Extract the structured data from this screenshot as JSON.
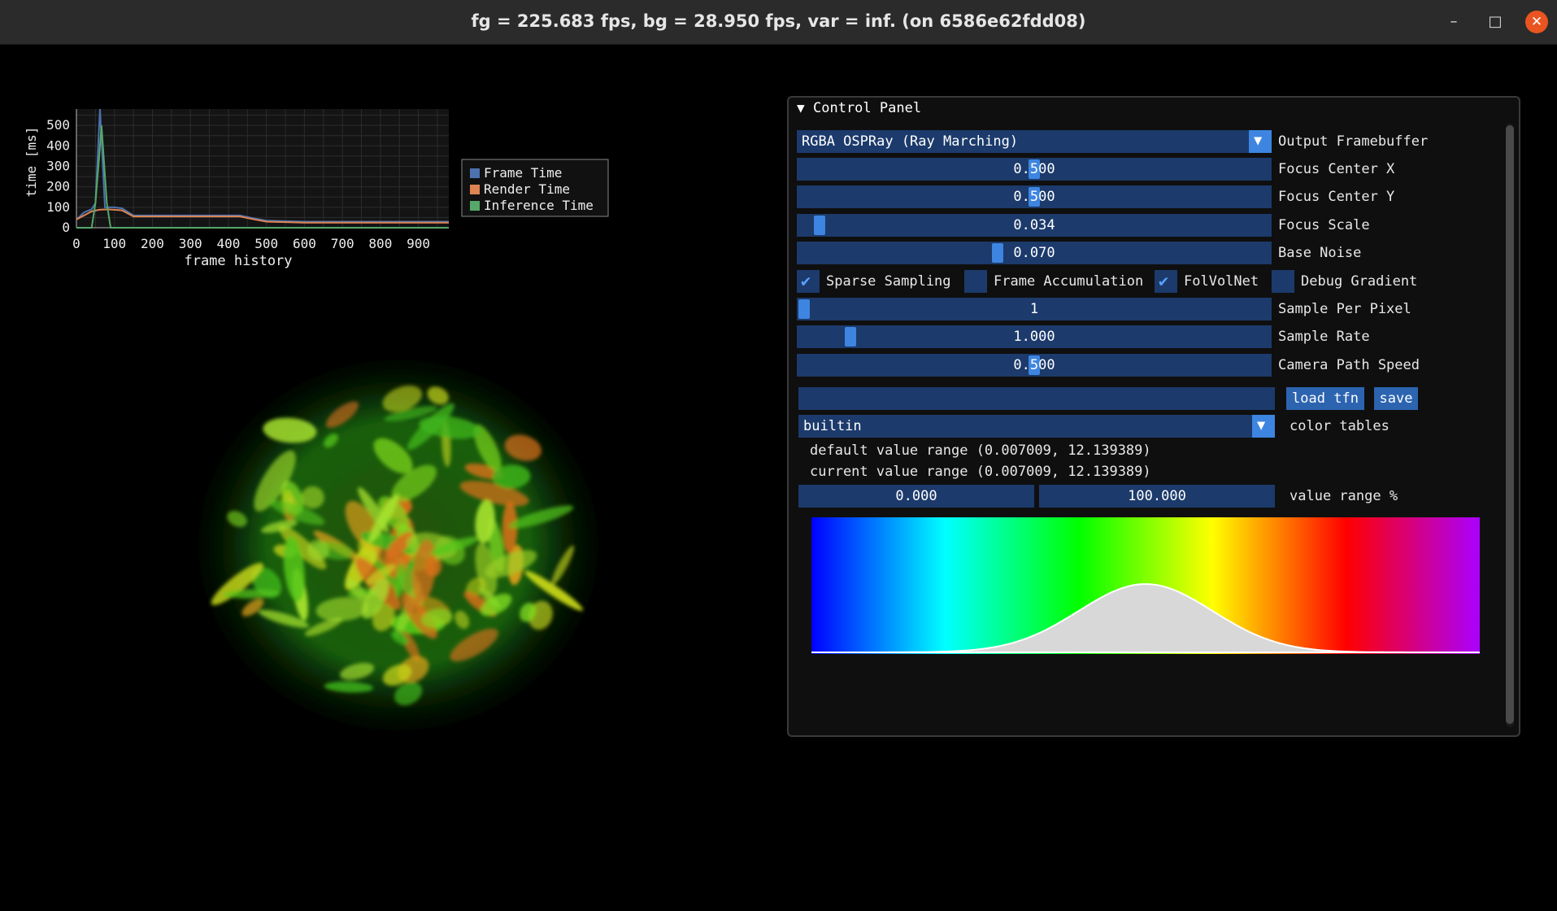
{
  "window": {
    "title": "fg = 225.683 fps, bg = 28.950 fps, var = inf. (on 6586e62fdd08)",
    "minimize_glyph": "–",
    "maximize_glyph": "□",
    "close_glyph": "✕",
    "close_color": "#e95420"
  },
  "chart_data": {
    "type": "line",
    "xlabel": "frame history",
    "ylabel": "time [ms]",
    "xlim": [
      0,
      980
    ],
    "ylim": [
      0,
      580
    ],
    "x_ticks": [
      0,
      100,
      200,
      300,
      400,
      500,
      600,
      700,
      800,
      900
    ],
    "y_ticks": [
      0,
      100,
      200,
      300,
      400,
      500
    ],
    "grid": true,
    "legend_position": "right",
    "series": [
      {
        "name": "Frame Time",
        "color": "#4c72b0",
        "x": [
          0,
          20,
          40,
          50,
          62,
          75,
          100,
          120,
          150,
          200,
          300,
          400,
          430,
          470,
          500,
          600,
          700,
          800,
          900,
          980
        ],
        "y": [
          40,
          75,
          90,
          120,
          580,
          100,
          100,
          95,
          60,
          60,
          60,
          60,
          60,
          45,
          35,
          30,
          30,
          30,
          30,
          30
        ]
      },
      {
        "name": "Render Time",
        "color": "#dd8452",
        "x": [
          0,
          20,
          40,
          60,
          80,
          100,
          120,
          150,
          200,
          300,
          400,
          430,
          470,
          500,
          600,
          700,
          800,
          900,
          980
        ],
        "y": [
          40,
          60,
          80,
          88,
          90,
          88,
          85,
          55,
          55,
          55,
          55,
          55,
          40,
          30,
          25,
          25,
          25,
          25,
          25
        ]
      },
      {
        "name": "Inference Time",
        "color": "#55a868",
        "x": [
          0,
          40,
          50,
          60,
          66,
          80,
          90,
          100,
          200,
          400,
          600,
          800,
          980
        ],
        "y": [
          0,
          0,
          120,
          350,
          500,
          120,
          0,
          0,
          0,
          0,
          0,
          0,
          0
        ]
      }
    ]
  },
  "panel": {
    "title": "Control Panel",
    "output_framebuffer": {
      "value": "RGBA OSPRay (Ray Marching)",
      "label": "Output Framebuffer"
    },
    "sliders": [
      {
        "key": "focus_x",
        "value": "0.500",
        "label": "Focus Center X",
        "level": 0.5
      },
      {
        "key": "focus_y",
        "value": "0.500",
        "label": "Focus Center Y",
        "level": 0.5
      },
      {
        "key": "focus_scale",
        "value": "0.034",
        "label": "Focus Scale",
        "level": 0.034
      },
      {
        "key": "base_noise",
        "value": "0.070",
        "label": "Base Noise",
        "level": 0.42
      }
    ],
    "checkboxes": [
      {
        "label": "Sparse Sampling",
        "checked": true
      },
      {
        "label": "Frame Accumulation",
        "checked": false
      },
      {
        "label": "FolVolNet",
        "checked": true
      },
      {
        "label": "Debug Gradient",
        "checked": false
      }
    ],
    "sliders2": [
      {
        "key": "spp",
        "value": "1",
        "label": "Sample Per Pixel",
        "level": 0.0
      },
      {
        "key": "sample_rate",
        "value": "1.000",
        "label": "Sample Rate",
        "level": 0.1
      },
      {
        "key": "cam_speed",
        "value": "0.500",
        "label": "Camera Path Speed",
        "level": 0.5
      }
    ],
    "tfn_path": {
      "value": ""
    },
    "load_tfn_label": "load tfn",
    "save_label": "save",
    "color_table": {
      "value": "builtin",
      "label": "color tables"
    },
    "default_range": "default value range (0.007009, 12.139389)",
    "current_range": "current value range (0.007009, 12.139389)",
    "range_min": "0.000",
    "range_max": "100.000",
    "range_label": "value range %",
    "dropdown_glyph": "▼",
    "check_glyph": "✔",
    "collapse_glyph": "▼"
  },
  "transfer_function": {
    "colormap": [
      "#0000ff",
      "#00ffff",
      "#00ff00",
      "#ffff00",
      "#ff0000",
      "#aa00ff"
    ],
    "opacity_peak_position": 0.5,
    "opacity_peak_value": 0.5
  }
}
